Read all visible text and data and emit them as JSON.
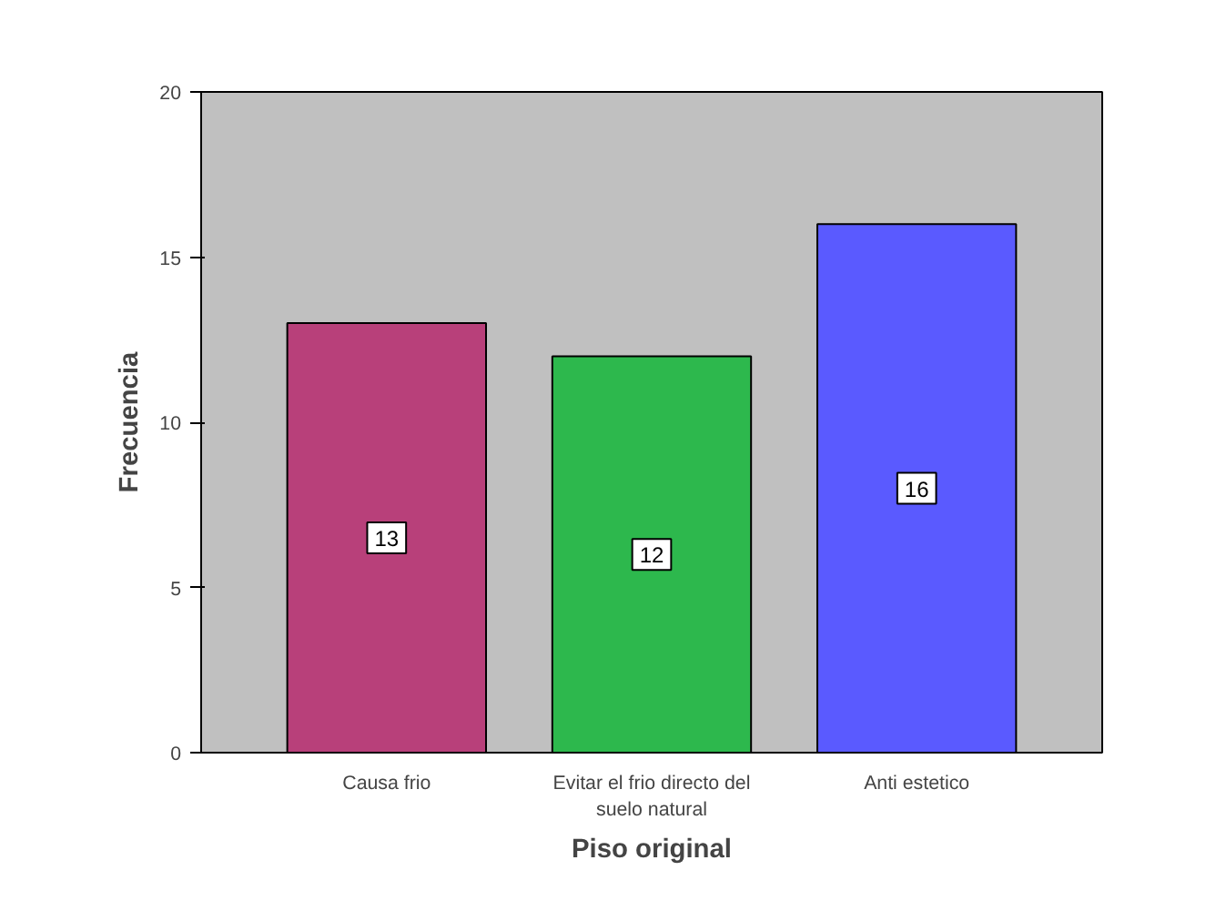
{
  "chart_data": {
    "type": "bar",
    "xlabel": "Piso original",
    "ylabel": "Frecuencia",
    "categories": [
      "Causa frio",
      "Evitar el frio directo del suelo natural",
      "Anti estetico"
    ],
    "values": [
      13,
      12,
      16
    ],
    "colors": [
      "#b8407a",
      "#2db84d",
      "#5a5aff"
    ],
    "ylim": [
      0,
      20
    ],
    "yticks": [
      0,
      5,
      10,
      15,
      20
    ],
    "grid": false,
    "data_labels": true
  }
}
